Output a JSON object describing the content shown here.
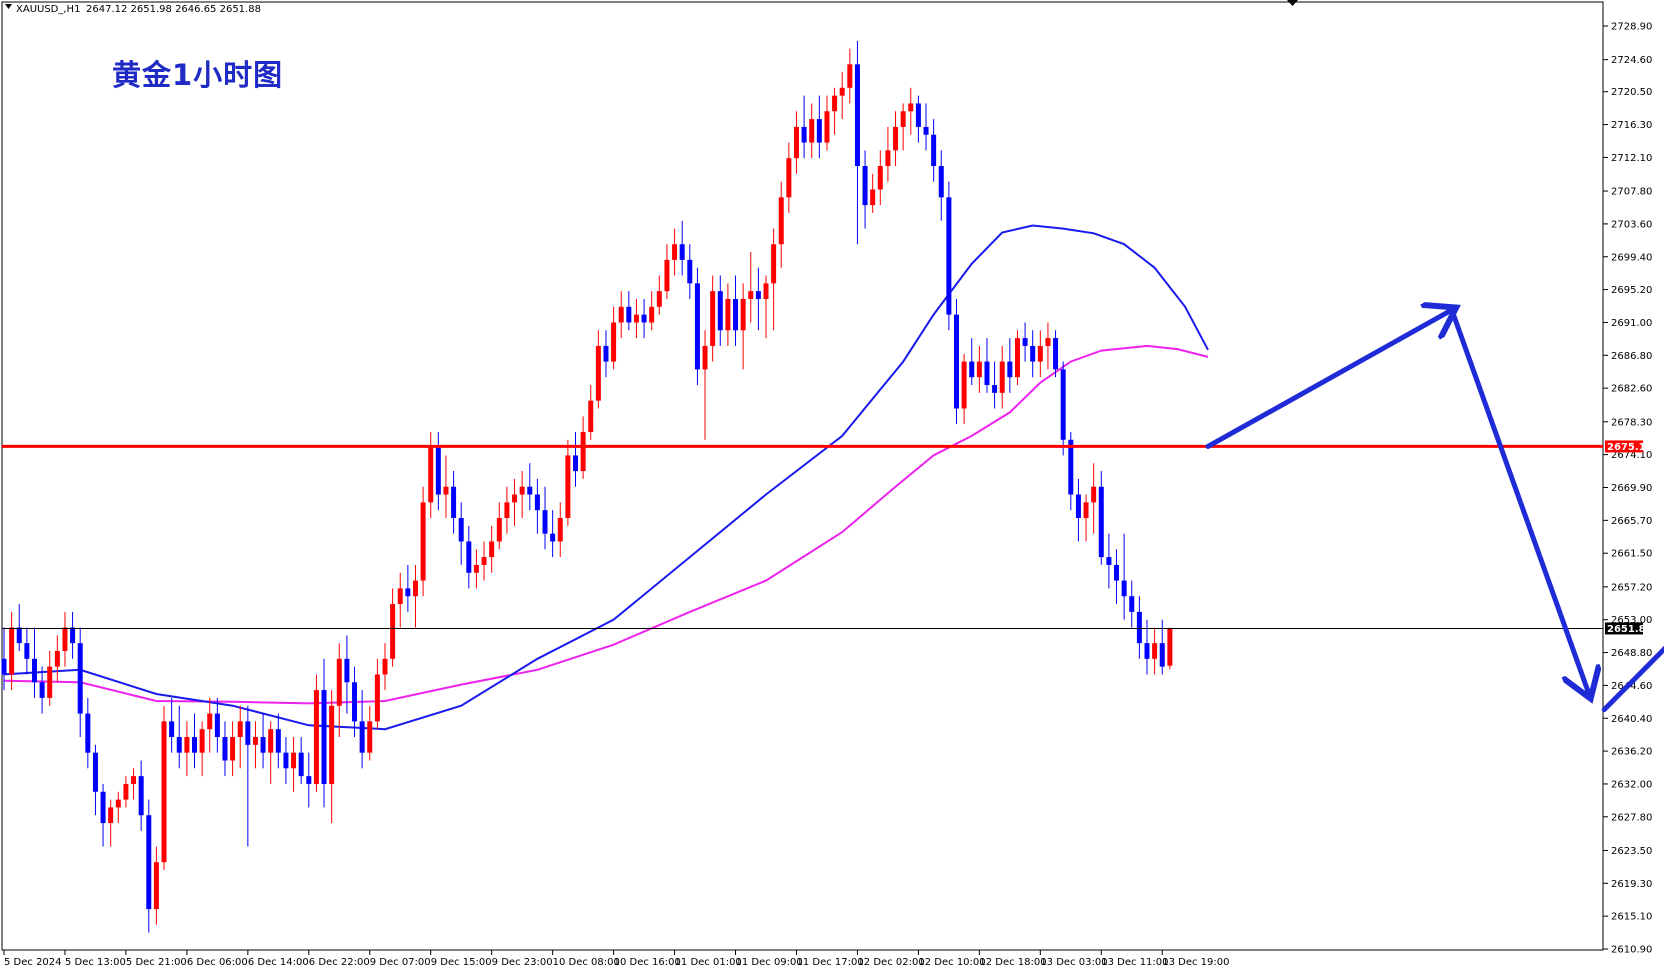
{
  "header": {
    "symbol": "XAUUSD_,H1",
    "ohlc": "2647.12 2651.98 2646.65 2651.88"
  },
  "chart_title": "黄金1小时图",
  "colors": {
    "bull": "#ff0000",
    "bear": "#0000ff",
    "ma_fast": "#1a1aee",
    "ma_slow": "#ee22ee",
    "hline": "#ff0000",
    "price_line": "#000000",
    "arrow": "#1f2bd6",
    "title": "#1f2bc4"
  },
  "chart_data": {
    "type": "candlestick",
    "symbol": "XAUUSD_,H1",
    "title": "黄金1小时图",
    "ylim": [
      2610.9,
      2731.2
    ],
    "y_ticks": [
      "2728.90",
      "2724.60",
      "2720.50",
      "2716.30",
      "2712.10",
      "2707.80",
      "2703.60",
      "2699.40",
      "2695.20",
      "2691.00",
      "2686.80",
      "2682.60",
      "2678.30",
      "2674.10",
      "2669.90",
      "2665.70",
      "2661.50",
      "2657.20",
      "2653.00",
      "2648.80",
      "2644.60",
      "2640.40",
      "2636.20",
      "2632.00",
      "2627.80",
      "2623.50",
      "2619.30",
      "2615.10",
      "2610.90"
    ],
    "x_ticks": [
      {
        "label": "5 Dec 2024",
        "bar": 0
      },
      {
        "label": "5 Dec 13:00",
        "bar": 8
      },
      {
        "label": "5 Dec 21:00",
        "bar": 16
      },
      {
        "label": "6 Dec 06:00",
        "bar": 24
      },
      {
        "label": "6 Dec 14:00",
        "bar": 32
      },
      {
        "label": "6 Dec 22:00",
        "bar": 40
      },
      {
        "label": "9 Dec 07:00",
        "bar": 48
      },
      {
        "label": "9 Dec 15:00",
        "bar": 56
      },
      {
        "label": "9 Dec 23:00",
        "bar": 64
      },
      {
        "label": "10 Dec 08:00",
        "bar": 72
      },
      {
        "label": "10 Dec 16:00",
        "bar": 80
      },
      {
        "label": "11 Dec 01:00",
        "bar": 88
      },
      {
        "label": "11 Dec 09:00",
        "bar": 96
      },
      {
        "label": "11 Dec 17:00",
        "bar": 104
      },
      {
        "label": "12 Dec 02:00",
        "bar": 112
      },
      {
        "label": "12 Dec 10:00",
        "bar": 120
      },
      {
        "label": "12 Dec 18:00",
        "bar": 128
      },
      {
        "label": "13 Dec 03:00",
        "bar": 136
      },
      {
        "label": "13 Dec 11:00",
        "bar": 144
      },
      {
        "label": "13 Dec 19:00",
        "bar": 152
      }
    ],
    "horizontal_line": {
      "value": 2675.15,
      "label": "2675.15"
    },
    "current_price": {
      "value": 2651.88,
      "label": "2651.88"
    },
    "candles": [
      [
        2648,
        2652,
        2644,
        2646
      ],
      [
        2646,
        2654,
        2644,
        2652
      ],
      [
        2652,
        2655,
        2649,
        2650
      ],
      [
        2650,
        2652,
        2646,
        2648
      ],
      [
        2648,
        2652,
        2643,
        2645
      ],
      [
        2645,
        2647,
        2641,
        2643
      ],
      [
        2643,
        2649,
        2642,
        2647
      ],
      [
        2647,
        2651,
        2645,
        2649
      ],
      [
        2649,
        2654,
        2647,
        2652
      ],
      [
        2652,
        2654,
        2648,
        2650
      ],
      [
        2650,
        2652,
        2638,
        2641
      ],
      [
        2641,
        2643,
        2634,
        2636
      ],
      [
        2636,
        2637,
        2628,
        2631
      ],
      [
        2631,
        2632,
        2624,
        2627
      ],
      [
        2627,
        2630,
        2624,
        2629
      ],
      [
        2629,
        2631,
        2627,
        2630
      ],
      [
        2630,
        2633,
        2629,
        2632
      ],
      [
        2632,
        2634,
        2630,
        2633
      ],
      [
        2633,
        2635,
        2626,
        2628
      ],
      [
        2628,
        2630,
        2613,
        2616
      ],
      [
        2616,
        2624,
        2614,
        2622
      ],
      [
        2622,
        2642,
        2621,
        2640
      ],
      [
        2640,
        2643,
        2636,
        2638
      ],
      [
        2638,
        2642,
        2634,
        2636
      ],
      [
        2636,
        2640,
        2633,
        2638
      ],
      [
        2638,
        2641,
        2634,
        2636
      ],
      [
        2636,
        2640,
        2633,
        2639
      ],
      [
        2639,
        2643,
        2636,
        2641
      ],
      [
        2641,
        2643,
        2636,
        2638
      ],
      [
        2638,
        2640,
        2633,
        2635
      ],
      [
        2635,
        2640,
        2633,
        2638
      ],
      [
        2638,
        2642,
        2634,
        2640
      ],
      [
        2640,
        2642,
        2624,
        2637
      ],
      [
        2637,
        2640,
        2634,
        2638
      ],
      [
        2638,
        2641,
        2634,
        2636
      ],
      [
        2636,
        2640,
        2632,
        2639
      ],
      [
        2639,
        2641,
        2634,
        2636
      ],
      [
        2636,
        2638,
        2632,
        2634
      ],
      [
        2634,
        2638,
        2631,
        2636
      ],
      [
        2636,
        2638,
        2632,
        2633
      ],
      [
        2633,
        2636,
        2629,
        2632
      ],
      [
        2632,
        2646,
        2631,
        2644
      ],
      [
        2644,
        2648,
        2629,
        2632
      ],
      [
        2632,
        2644,
        2627,
        2642
      ],
      [
        2642,
        2650,
        2638,
        2648
      ],
      [
        2648,
        2651,
        2641,
        2645
      ],
      [
        2645,
        2647,
        2638,
        2640
      ],
      [
        2640,
        2644,
        2634,
        2636
      ],
      [
        2636,
        2642,
        2635,
        2640
      ],
      [
        2640,
        2648,
        2639,
        2646
      ],
      [
        2646,
        2650,
        2644,
        2648
      ],
      [
        2648,
        2657,
        2647,
        2655
      ],
      [
        2655,
        2659,
        2652,
        2657
      ],
      [
        2657,
        2660,
        2654,
        2656
      ],
      [
        2656,
        2660,
        2652,
        2658
      ],
      [
        2658,
        2670,
        2656,
        2668
      ],
      [
        2668,
        2677,
        2666,
        2675
      ],
      [
        2675,
        2677,
        2667,
        2669
      ],
      [
        2669,
        2674,
        2666,
        2670
      ],
      [
        2670,
        2672,
        2664,
        2666
      ],
      [
        2666,
        2668,
        2660,
        2663
      ],
      [
        2663,
        2665,
        2657,
        2659
      ],
      [
        2659,
        2662,
        2657,
        2660
      ],
      [
        2660,
        2663,
        2658,
        2661
      ],
      [
        2661,
        2665,
        2659,
        2663
      ],
      [
        2663,
        2668,
        2662,
        2666
      ],
      [
        2666,
        2670,
        2664,
        2668
      ],
      [
        2668,
        2671,
        2665,
        2669
      ],
      [
        2669,
        2672,
        2666,
        2670
      ],
      [
        2670,
        2673,
        2667,
        2669
      ],
      [
        2669,
        2671,
        2664,
        2667
      ],
      [
        2667,
        2670,
        2662,
        2664
      ],
      [
        2664,
        2667,
        2661,
        2663
      ],
      [
        2663,
        2668,
        2661,
        2666
      ],
      [
        2666,
        2676,
        2665,
        2674
      ],
      [
        2674,
        2677,
        2670,
        2672
      ],
      [
        2672,
        2679,
        2671,
        2677
      ],
      [
        2677,
        2683,
        2676,
        2681
      ],
      [
        2681,
        2690,
        2680,
        2688
      ],
      [
        2688,
        2690,
        2684,
        2686
      ],
      [
        2686,
        2693,
        2685,
        2691
      ],
      [
        2691,
        2695,
        2689,
        2693
      ],
      [
        2693,
        2695,
        2690,
        2691
      ],
      [
        2691,
        2694,
        2689,
        2692
      ],
      [
        2692,
        2694,
        2689,
        2691
      ],
      [
        2691,
        2695,
        2690,
        2693
      ],
      [
        2693,
        2697,
        2692,
        2695
      ],
      [
        2695,
        2701,
        2694,
        2699
      ],
      [
        2699,
        2703,
        2697,
        2701
      ],
      [
        2701,
        2704,
        2697,
        2699
      ],
      [
        2699,
        2701,
        2694,
        2696
      ],
      [
        2696,
        2698,
        2683,
        2685
      ],
      [
        2685,
        2690,
        2676,
        2688
      ],
      [
        2688,
        2697,
        2686,
        2695
      ],
      [
        2695,
        2697,
        2688,
        2690
      ],
      [
        2690,
        2696,
        2688,
        2694
      ],
      [
        2694,
        2697,
        2688,
        2690
      ],
      [
        2690,
        2696,
        2685,
        2694
      ],
      [
        2694,
        2700,
        2691,
        2695
      ],
      [
        2695,
        2698,
        2690,
        2694
      ],
      [
        2694,
        2697,
        2689,
        2696
      ],
      [
        2696,
        2703,
        2690,
        2701
      ],
      [
        2701,
        2709,
        2698,
        2707
      ],
      [
        2707,
        2714,
        2705,
        2712
      ],
      [
        2712,
        2718,
        2710,
        2716
      ],
      [
        2716,
        2720,
        2712,
        2714
      ],
      [
        2714,
        2719,
        2712,
        2717
      ],
      [
        2717,
        2720,
        2712,
        2714
      ],
      [
        2714,
        2720,
        2713,
        2718
      ],
      [
        2718,
        2721,
        2715,
        2720
      ],
      [
        2720,
        2723,
        2717,
        2721
      ],
      [
        2721,
        2726,
        2719,
        2724
      ],
      [
        2724,
        2727,
        2701,
        2711
      ],
      [
        2711,
        2713,
        2703,
        2706
      ],
      [
        2706,
        2710,
        2705,
        2708
      ],
      [
        2708,
        2713,
        2706,
        2711
      ],
      [
        2711,
        2716,
        2709,
        2713
      ],
      [
        2713,
        2718,
        2711,
        2716
      ],
      [
        2716,
        2719,
        2713,
        2718
      ],
      [
        2718,
        2721,
        2715,
        2719
      ],
      [
        2719,
        2720,
        2714,
        2716
      ],
      [
        2716,
        2719,
        2713,
        2715
      ],
      [
        2715,
        2717,
        2709,
        2711
      ],
      [
        2711,
        2713,
        2704,
        2707
      ],
      [
        2707,
        2709,
        2690,
        2692
      ],
      [
        2692,
        2694,
        2678,
        2680
      ],
      [
        2680,
        2687,
        2678,
        2686
      ],
      [
        2686,
        2689,
        2683,
        2684
      ],
      [
        2684,
        2688,
        2682,
        2686
      ],
      [
        2686,
        2689,
        2682,
        2683
      ],
      [
        2683,
        2686,
        2680,
        2682
      ],
      [
        2682,
        2688,
        2680,
        2686
      ],
      [
        2686,
        2689,
        2682,
        2684
      ],
      [
        2684,
        2690,
        2683,
        2689
      ],
      [
        2689,
        2691,
        2686,
        2688
      ],
      [
        2688,
        2690,
        2684,
        2686
      ],
      [
        2686,
        2690,
        2684,
        2688
      ],
      [
        2688,
        2691,
        2685,
        2689
      ],
      [
        2689,
        2690,
        2684,
        2685
      ],
      [
        2685,
        2686,
        2674,
        2676
      ],
      [
        2676,
        2677,
        2667,
        2669
      ],
      [
        2669,
        2671,
        2663,
        2666
      ],
      [
        2666,
        2669,
        2663,
        2668
      ],
      [
        2668,
        2673,
        2664,
        2670
      ],
      [
        2670,
        2672,
        2660,
        2661
      ],
      [
        2661,
        2664,
        2657,
        2660
      ],
      [
        2660,
        2662,
        2655,
        2658
      ],
      [
        2658,
        2664,
        2653,
        2656
      ],
      [
        2656,
        2658,
        2652,
        2654
      ],
      [
        2654,
        2656,
        2648,
        2650
      ],
      [
        2650,
        2653,
        2646,
        2648
      ],
      [
        2648,
        2652,
        2646,
        2650
      ],
      [
        2650,
        2653,
        2646,
        2647
      ],
      [
        2647.12,
        2651.98,
        2646.65,
        2651.88
      ]
    ],
    "ma_blue": {
      "points": [
        [
          0,
          2646.0
        ],
        [
          10,
          2646.6
        ],
        [
          20,
          2643.5
        ],
        [
          30,
          2642.0
        ],
        [
          40,
          2639.5
        ],
        [
          50,
          2639.0
        ],
        [
          60,
          2642.0
        ],
        [
          70,
          2648.0
        ],
        [
          80,
          2653.0
        ],
        [
          90,
          2661.0
        ],
        [
          100,
          2669.0
        ],
        [
          110,
          2676.5
        ],
        [
          118,
          2686.0
        ],
        [
          122,
          2692.0
        ],
        [
          127,
          2698.5
        ],
        [
          131,
          2702.5
        ],
        [
          135,
          2703.4
        ],
        [
          139,
          2703.0
        ],
        [
          143,
          2702.4
        ],
        [
          147,
          2701.0
        ],
        [
          151,
          2698.0
        ],
        [
          155,
          2693.0
        ],
        [
          158,
          2687.5
        ]
      ]
    },
    "ma_magenta": {
      "points": [
        [
          0,
          2645.2
        ],
        [
          10,
          2645.0
        ],
        [
          20,
          2642.6
        ],
        [
          30,
          2642.5
        ],
        [
          40,
          2642.3
        ],
        [
          50,
          2642.6
        ],
        [
          60,
          2644.7
        ],
        [
          70,
          2646.6
        ],
        [
          80,
          2649.8
        ],
        [
          90,
          2654.0
        ],
        [
          100,
          2658.0
        ],
        [
          110,
          2664.2
        ],
        [
          117,
          2670.0
        ],
        [
          122,
          2674.0
        ],
        [
          127,
          2676.5
        ],
        [
          132,
          2679.5
        ],
        [
          136,
          2683.3
        ],
        [
          140,
          2686.0
        ],
        [
          144,
          2687.4
        ],
        [
          150,
          2688.0
        ],
        [
          154,
          2687.6
        ],
        [
          158,
          2686.6
        ]
      ]
    },
    "annotations": {
      "arrows": [
        {
          "from": [
            2658,
            2675.15
          ],
          "to": [
            2690,
            2692.6
          ]
        },
        {
          "from": [
            2690,
            2692.6
          ],
          "to": [
            2708,
            2643.5
          ]
        },
        {
          "from": [
            2710,
            2641.5
          ],
          "to": [
            2740,
            2671.0
          ]
        },
        {
          "from": [
            2740,
            2671.0
          ],
          "to": [
            2770,
            2639.0
          ]
        }
      ]
    }
  }
}
